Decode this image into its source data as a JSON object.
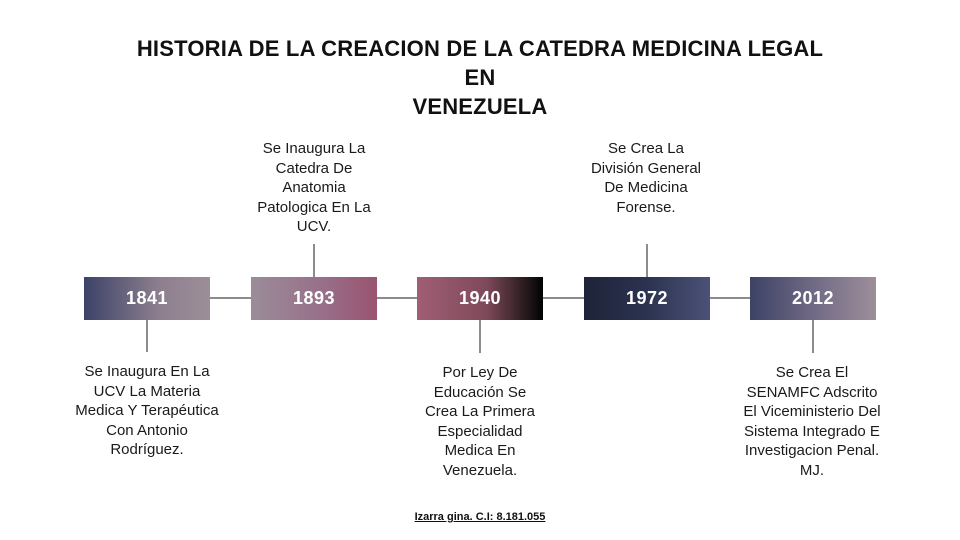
{
  "title": {
    "line1": "HISTORIA DE LA CREACION DE LA CATEDRA MEDICINA LEGAL",
    "line2": "EN",
    "line3": "VENEZUELA"
  },
  "events": [
    {
      "year": "1841",
      "text": "Se Inaugura En La UCV La Materia Medica Y Terapéutica Con Antonio Rodríguez.",
      "position": "below"
    },
    {
      "year": "1893",
      "text": "Se Inaugura La Catedra De Anatomia Patologica En La UCV.",
      "position": "above"
    },
    {
      "year": "1940",
      "text": "Por Ley De Educación Se Crea La Primera Especialidad Medica En Venezuela.",
      "position": "below"
    },
    {
      "year": "1972",
      "text": "Se Crea La División General De Medicina Forense.",
      "position": "above"
    },
    {
      "year": "2012",
      "text": "Se Crea El SENAMFC Adscrito El Viceministerio Del Sistema Integrado E Investigacion Penal. MJ.",
      "position": "below"
    }
  ],
  "credit": "Izarra gina. C.I: 8.181.055"
}
